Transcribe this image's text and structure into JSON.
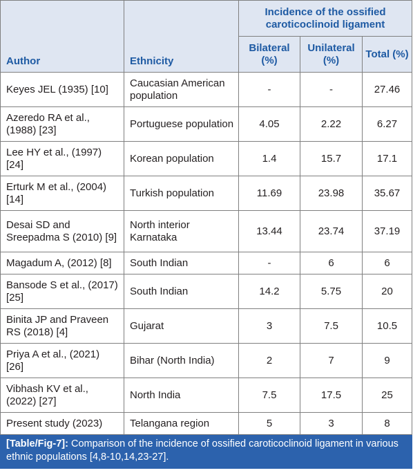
{
  "table": {
    "headers": {
      "author": "Author",
      "ethnicity": "Ethnicity",
      "group": "Incidence of the ossified caroticoclinoid ligament",
      "bilateral": "Bilateral (%)",
      "unilateral": "Unilateral (%)",
      "total": "Total (%)"
    },
    "rows": [
      {
        "author": "Keyes JEL (1935) [10]",
        "ethnicity": "Caucasian American population",
        "bilateral": "-",
        "unilateral": "-",
        "total": "27.46"
      },
      {
        "author": "Azeredo RA et al., (1988) [23]",
        "ethnicity": "Portuguese population",
        "bilateral": "4.05",
        "unilateral": "2.22",
        "total": "6.27"
      },
      {
        "author": "Lee HY et al., (1997) [24]",
        "ethnicity": "Korean population",
        "bilateral": "1.4",
        "unilateral": "15.7",
        "total": "17.1"
      },
      {
        "author": "Erturk M et al., (2004) [14]",
        "ethnicity": "Turkish population",
        "bilateral": "11.69",
        "unilateral": "23.98",
        "total": "35.67"
      },
      {
        "author": "Desai SD and Sreepadma S (2010) [9]",
        "ethnicity": "North interior Karnataka",
        "bilateral": "13.44",
        "unilateral": "23.74",
        "total": "37.19"
      },
      {
        "author": "Magadum A, (2012) [8]",
        "ethnicity": "South Indian",
        "bilateral": "-",
        "unilateral": "6",
        "total": "6"
      },
      {
        "author": "Bansode S et al., (2017) [25]",
        "ethnicity": "South Indian",
        "bilateral": "14.2",
        "unilateral": "5.75",
        "total": "20"
      },
      {
        "author": "Binita JP and Praveen RS (2018) [4]",
        "ethnicity": "Gujarat",
        "bilateral": "3",
        "unilateral": "7.5",
        "total": "10.5"
      },
      {
        "author": "Priya A et al., (2021) [26]",
        "ethnicity": "Bihar (North India)",
        "bilateral": "2",
        "unilateral": "7",
        "total": "9"
      },
      {
        "author": "Vibhash KV et al., (2022) [27]",
        "ethnicity": "North India",
        "bilateral": "7.5",
        "unilateral": "17.5",
        "total": "25"
      },
      {
        "author": "Present study (2023)",
        "ethnicity": "Telangana region",
        "bilateral": "5",
        "unilateral": "3",
        "total": "8"
      }
    ]
  },
  "caption": {
    "label": "[Table/Fig-7]:",
    "text": " Comparison of the incidence of ossified caroticoclinoid ligament in various ethnic populations [4,8-10,14,23-27]."
  }
}
